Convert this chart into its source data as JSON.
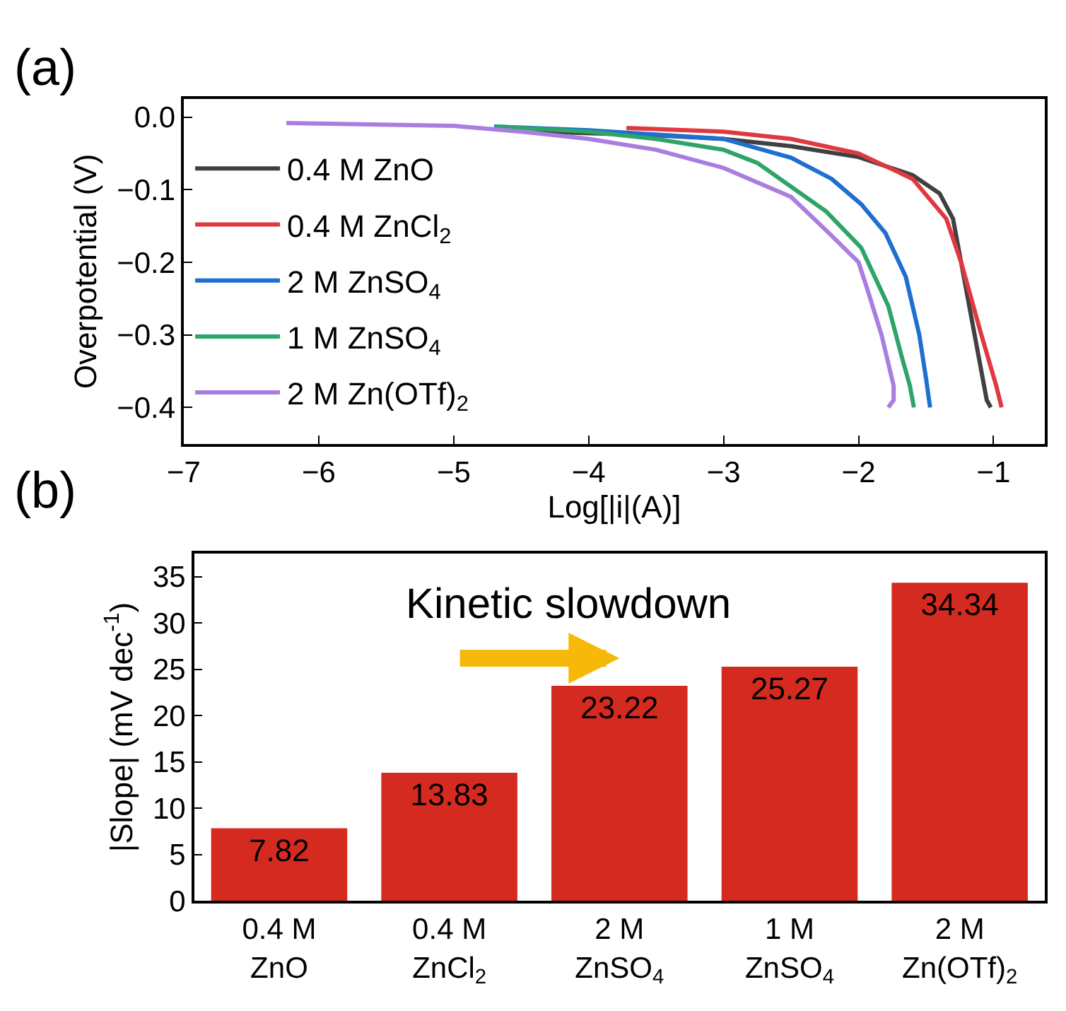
{
  "chart_data": [
    {
      "type": "line",
      "title": "(a)",
      "xlabel": "Log[|i|(A)]",
      "ylabel": "Overpotential (V)",
      "xlim": [
        -7,
        -0.62
      ],
      "xticks": [
        -7,
        -6,
        -5,
        -4,
        -3,
        -2,
        -1
      ],
      "ylim": [
        -0.45,
        0.025
      ],
      "yticks": [
        {
          "value": 0,
          "label": "0.0"
        },
        -0.1,
        -0.2,
        -0.3,
        -0.4
      ],
      "legend": "left",
      "marker": "none",
      "line_style": "solid",
      "series": [
        {
          "name": "0.4 M ZnO",
          "color": "#404040",
          "x": [
            -4.4,
            -3.5,
            -3.0,
            -2.5,
            -2.0,
            -1.6,
            -1.4,
            -1.3,
            -1.24,
            -1.14,
            -1.05,
            -1.02
          ],
          "values": [
            -0.02,
            -0.025,
            -0.03,
            -0.04,
            -0.055,
            -0.08,
            -0.105,
            -0.14,
            -0.2,
            -0.3,
            -0.39,
            -0.4
          ]
        },
        {
          "name": "0.4 M ZnCl$_{2}$",
          "color": "#e0383f",
          "x": [
            -3.72,
            -3.0,
            -2.5,
            -2.0,
            -1.6,
            -1.35,
            -1.24,
            -1.09,
            -0.98,
            -0.94
          ],
          "values": [
            -0.015,
            -0.02,
            -0.03,
            -0.05,
            -0.085,
            -0.14,
            -0.2,
            -0.3,
            -0.37,
            -0.4
          ]
        },
        {
          "name": "2 M ZnSO$_{4}$",
          "color": "#1f6fd0",
          "x": [
            -4.7,
            -4.0,
            -3.0,
            -2.5,
            -2.2,
            -1.98,
            -1.8,
            -1.65,
            -1.55,
            -1.5,
            -1.47
          ],
          "values": [
            -0.013,
            -0.018,
            -0.03,
            -0.056,
            -0.085,
            -0.12,
            -0.16,
            -0.22,
            -0.3,
            -0.36,
            -0.4
          ]
        },
        {
          "name": "1 M ZnSO$_{4}$",
          "color": "#2ea468",
          "x": [
            -4.69,
            -4.0,
            -3.5,
            -3.0,
            -2.75,
            -2.24,
            -1.98,
            -1.78,
            -1.68,
            -1.62,
            -1.59
          ],
          "values": [
            -0.013,
            -0.02,
            -0.03,
            -0.045,
            -0.063,
            -0.13,
            -0.18,
            -0.26,
            -0.33,
            -0.37,
            -0.4
          ]
        },
        {
          "name": "2 M Zn(OTf)$_{2}$",
          "color": "#a87ee0",
          "x": [
            -6.24,
            -5.0,
            -4.5,
            -4.0,
            -3.5,
            -3.0,
            -2.75,
            -2.5,
            -2.24,
            -2.0,
            -1.93,
            -1.83,
            -1.74,
            -1.74,
            -1.78
          ],
          "values": [
            -0.008,
            -0.012,
            -0.02,
            -0.03,
            -0.045,
            -0.07,
            -0.09,
            -0.11,
            -0.156,
            -0.2,
            -0.24,
            -0.3,
            -0.37,
            -0.39,
            -0.4
          ]
        }
      ]
    },
    {
      "type": "bar",
      "title": "(b)",
      "ylabel": "|Slope| (mV dec$^{-1}$)",
      "categories": [
        "0.4 M\nZnO",
        "0.4 M\nZnCl$_{2}$",
        "2 M\nZnSO$_{4}$",
        "1 M\nZnSO$_{4}$",
        "2 M\nZn(OTf)$_{2}$"
      ],
      "values": [
        7.82,
        13.83,
        23.22,
        25.27,
        34.34
      ],
      "color": "#d42a1f",
      "data_labels": true,
      "ylim": [
        0,
        37.5
      ],
      "yticks": [
        0,
        5,
        10,
        15,
        20,
        25,
        30,
        35
      ],
      "annotations": [
        "Kinetic slowdown"
      ]
    }
  ]
}
